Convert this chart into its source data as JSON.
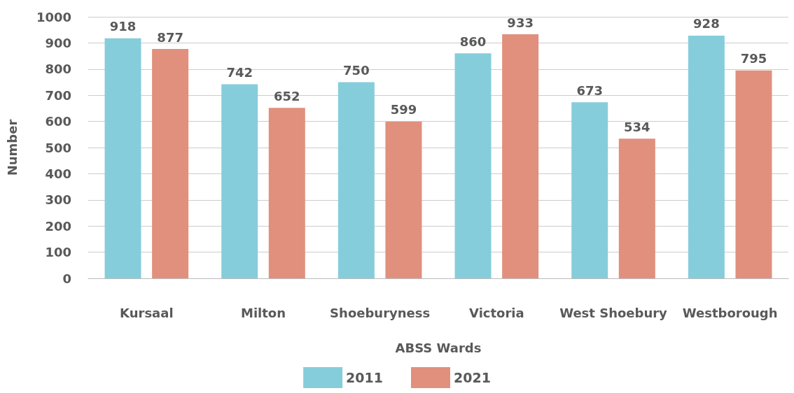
{
  "chart_data": {
    "type": "bar",
    "categories": [
      "Kursaal",
      "Milton",
      "Shoeburyness",
      "Victoria",
      "West Shoebury",
      "Westborough"
    ],
    "series": [
      {
        "name": "2011",
        "color": "#86cddb",
        "values": [
          918,
          742,
          750,
          860,
          673,
          928
        ]
      },
      {
        "name": "2021",
        "color": "#e0907d",
        "values": [
          877,
          652,
          599,
          933,
          534,
          795
        ]
      }
    ],
    "xlabel": "ABSS Wards",
    "ylabel": "Number",
    "ylim": [
      0,
      1000
    ],
    "yticks": [
      0,
      100,
      200,
      300,
      400,
      500,
      600,
      700,
      800,
      900,
      1000
    ],
    "grid": "y",
    "legend": "bottom",
    "data_labels": true
  }
}
